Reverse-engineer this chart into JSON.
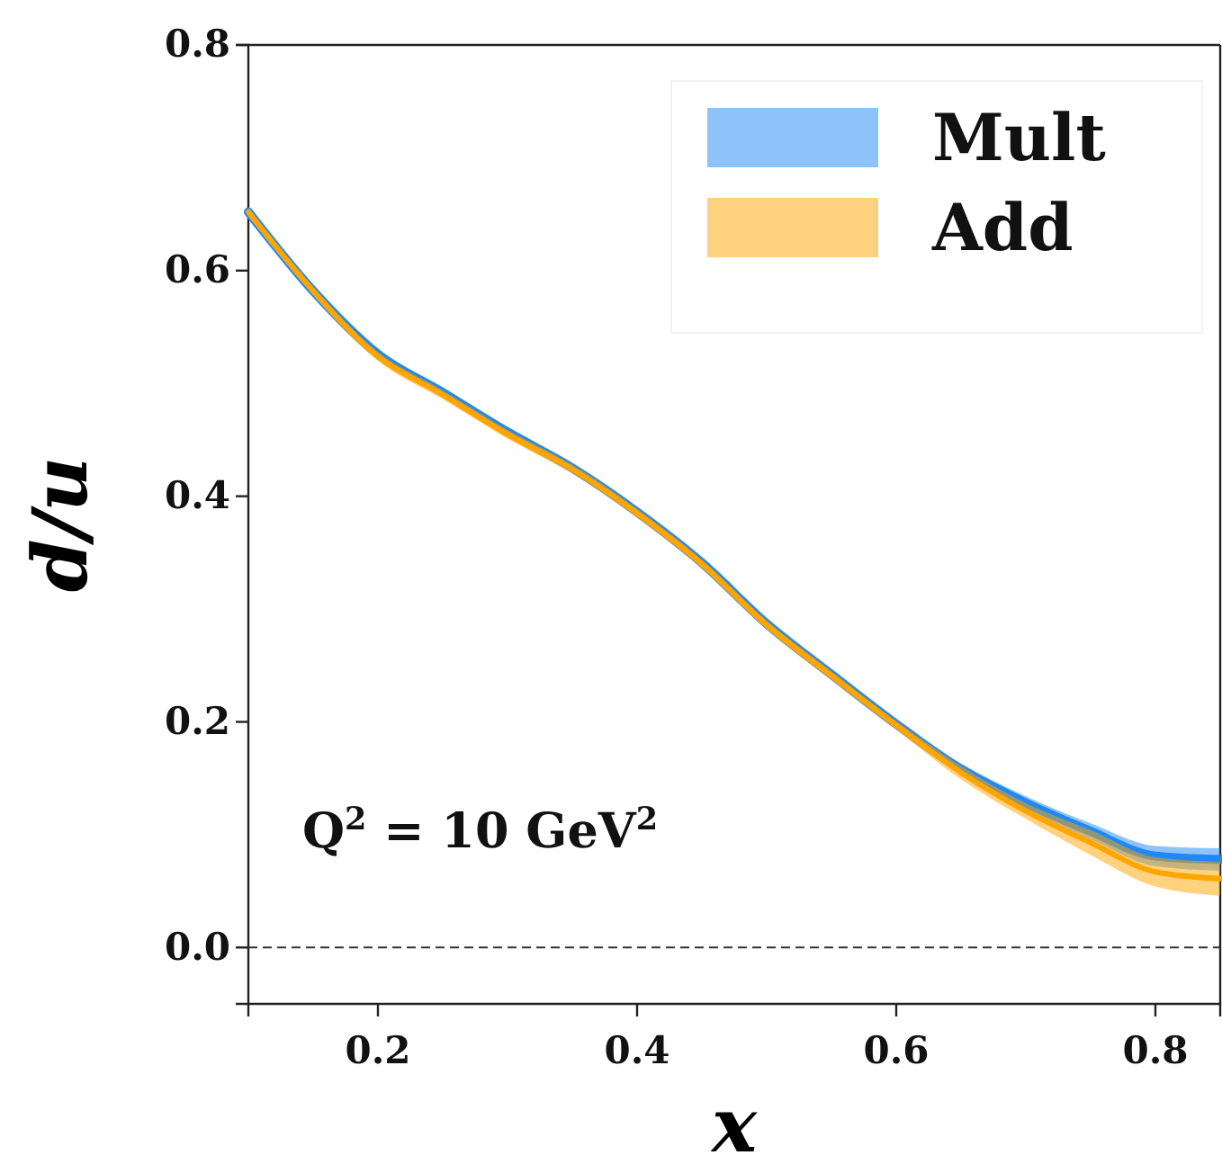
{
  "chart_data": {
    "type": "line",
    "xlabel": "x",
    "ylabel": "d/u",
    "x": [
      0.1,
      0.15,
      0.2,
      0.25,
      0.3,
      0.35,
      0.4,
      0.45,
      0.5,
      0.55,
      0.6,
      0.65,
      0.7,
      0.75,
      0.8,
      0.85
    ],
    "series": [
      {
        "name": "Mult",
        "color": "#1e88f5",
        "values": [
          0.652,
          0.582,
          0.526,
          0.492,
          0.457,
          0.425,
          0.386,
          0.341,
          0.287,
          0.242,
          0.198,
          0.158,
          0.128,
          0.103,
          0.081,
          0.078
        ],
        "lower": [
          0.648,
          0.578,
          0.522,
          0.488,
          0.453,
          0.421,
          0.382,
          0.337,
          0.283,
          0.238,
          0.194,
          0.153,
          0.122,
          0.096,
          0.072,
          0.068
        ],
        "upper": [
          0.656,
          0.586,
          0.53,
          0.496,
          0.461,
          0.429,
          0.39,
          0.345,
          0.291,
          0.246,
          0.202,
          0.163,
          0.134,
          0.11,
          0.09,
          0.088
        ]
      },
      {
        "name": "Add",
        "color": "#ffa500",
        "values": [
          0.652,
          0.582,
          0.524,
          0.49,
          0.455,
          0.424,
          0.385,
          0.34,
          0.286,
          0.241,
          0.197,
          0.155,
          0.121,
          0.093,
          0.067,
          0.061
        ],
        "lower": [
          0.648,
          0.578,
          0.52,
          0.486,
          0.451,
          0.42,
          0.381,
          0.336,
          0.282,
          0.237,
          0.193,
          0.149,
          0.114,
          0.082,
          0.054,
          0.046
        ],
        "upper": [
          0.656,
          0.586,
          0.528,
          0.494,
          0.459,
          0.428,
          0.389,
          0.344,
          0.29,
          0.245,
          0.201,
          0.161,
          0.128,
          0.104,
          0.08,
          0.076
        ]
      }
    ],
    "xlim": [
      0.1,
      0.85
    ],
    "ylim": [
      -0.05,
      0.8
    ],
    "xticks": [
      0.2,
      0.4,
      0.6,
      0.8
    ],
    "yticks": [
      {
        "value": 0,
        "label": "0.0"
      },
      0.2,
      0.4,
      0.6,
      0.8
    ],
    "ref_lines": [
      {
        "axis": "y",
        "value": 0,
        "color": "#333333",
        "line_style": "dashed"
      }
    ],
    "annotations": [
      "Q$^{2}$ = 10 GeV$^{2}$"
    ],
    "legend": "top right",
    "grid": false,
    "marker": "none",
    "line_style": "solid"
  }
}
